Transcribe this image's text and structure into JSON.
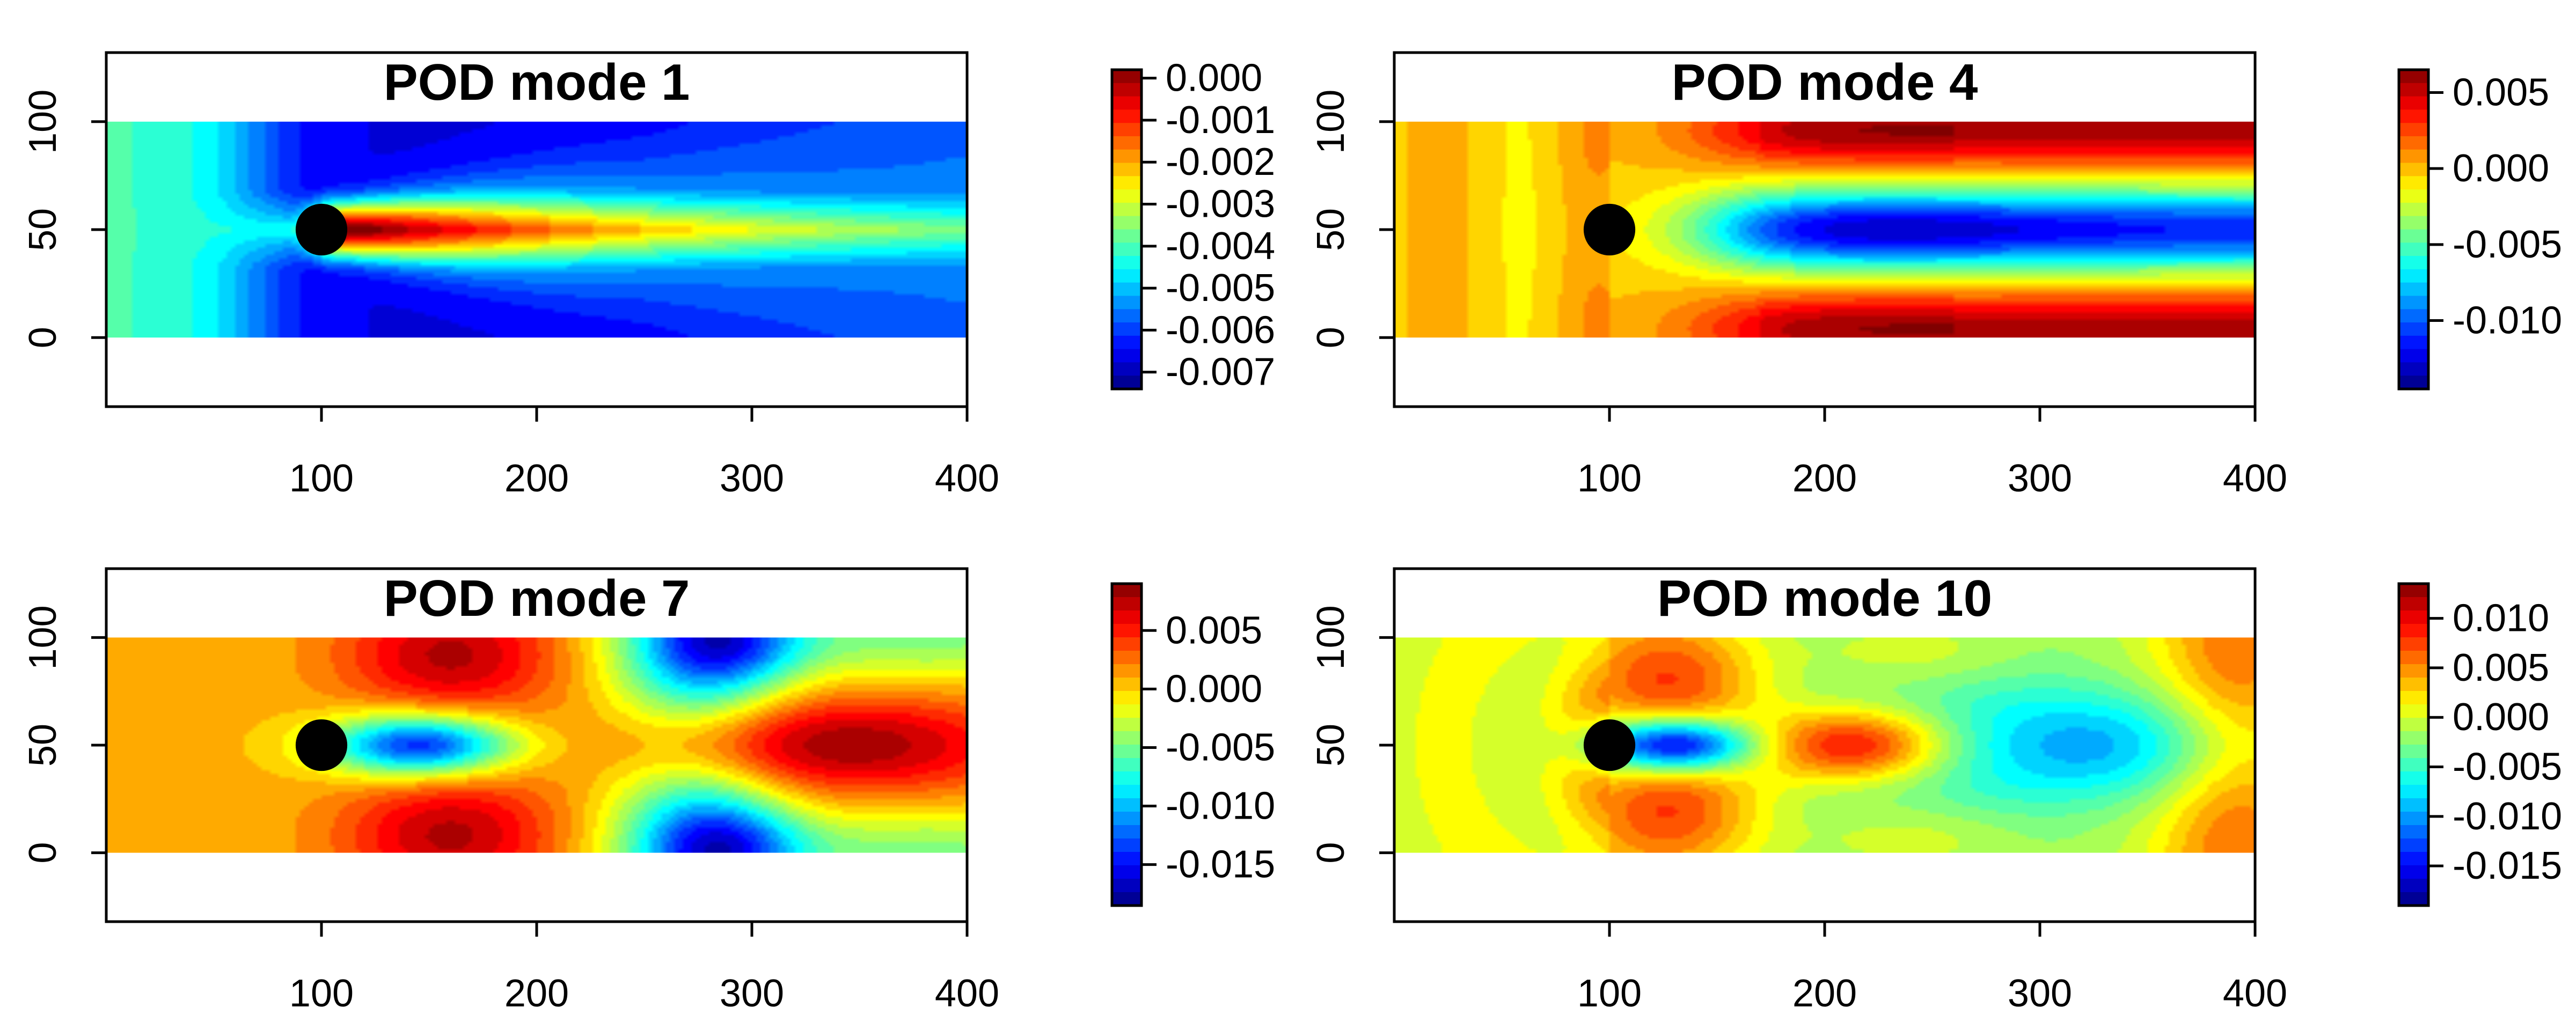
{
  "figure": {
    "panels": 4
  },
  "chart_data": [
    {
      "type": "heatmap",
      "title": "POD mode 1",
      "xlabel": "",
      "ylabel": "",
      "xlim": [
        0,
        400
      ],
      "ylim": [
        -32,
        132
      ],
      "field_extent": {
        "x": [
          0,
          400
        ],
        "y": [
          0,
          100
        ]
      },
      "x_ticks": [
        "100",
        "200",
        "300",
        "400"
      ],
      "x_tick_values": [
        100,
        200,
        300,
        400
      ],
      "y_ticks": [
        "0",
        "50",
        "100"
      ],
      "y_tick_values": [
        0,
        50,
        100
      ],
      "cylinder": {
        "center": [
          100,
          50
        ],
        "radius": 12
      },
      "colormap": "jet",
      "value_range": [
        -0.0074,
        0.0002
      ],
      "colorbar_ticks": [
        "0.000",
        "-0.001",
        "-0.002",
        "-0.003",
        "-0.004",
        "-0.005",
        "-0.006",
        "-0.007"
      ],
      "colorbar_tick_values": [
        0.0,
        -0.001,
        -0.002,
        -0.003,
        -0.004,
        -0.005,
        -0.006,
        -0.007
      ],
      "pattern": "mode1"
    },
    {
      "type": "heatmap",
      "title": "POD mode 4",
      "xlabel": "",
      "ylabel": "",
      "xlim": [
        0,
        400
      ],
      "ylim": [
        -32,
        132
      ],
      "field_extent": {
        "x": [
          0,
          400
        ],
        "y": [
          0,
          100
        ]
      },
      "x_ticks": [
        "100",
        "200",
        "300",
        "400"
      ],
      "x_tick_values": [
        100,
        200,
        300,
        400
      ],
      "y_ticks": [
        "0",
        "50",
        "100"
      ],
      "y_tick_values": [
        0,
        50,
        100
      ],
      "cylinder": {
        "center": [
          100,
          50
        ],
        "radius": 12
      },
      "colormap": "jet",
      "value_range": [
        -0.0145,
        0.0065
      ],
      "colorbar_ticks": [
        "0.005",
        "0.000",
        "-0.005",
        "-0.010"
      ],
      "colorbar_tick_values": [
        0.005,
        0.0,
        -0.005,
        -0.01
      ],
      "pattern": "mode4"
    },
    {
      "type": "heatmap",
      "title": "POD mode 7",
      "xlabel": "",
      "ylabel": "",
      "xlim": [
        0,
        400
      ],
      "ylim": [
        -32,
        132
      ],
      "field_extent": {
        "x": [
          0,
          400
        ],
        "y": [
          0,
          100
        ]
      },
      "x_ticks": [
        "100",
        "200",
        "300",
        "400"
      ],
      "x_tick_values": [
        100,
        200,
        300,
        400
      ],
      "y_ticks": [
        "0",
        "50",
        "100"
      ],
      "y_tick_values": [
        0,
        50,
        100
      ],
      "cylinder": {
        "center": [
          100,
          50
        ],
        "radius": 12
      },
      "colormap": "jet",
      "value_range": [
        -0.0185,
        0.009
      ],
      "colorbar_ticks": [
        "0.005",
        "0.000",
        "-0.005",
        "-0.010",
        "-0.015"
      ],
      "colorbar_tick_values": [
        0.005,
        0.0,
        -0.005,
        -0.01,
        -0.015
      ],
      "pattern": "mode7"
    },
    {
      "type": "heatmap",
      "title": "POD mode 10",
      "xlabel": "",
      "ylabel": "",
      "xlim": [
        0,
        400
      ],
      "ylim": [
        -32,
        132
      ],
      "field_extent": {
        "x": [
          0,
          400
        ],
        "y": [
          0,
          100
        ]
      },
      "x_ticks": [
        "100",
        "200",
        "300",
        "400"
      ],
      "x_tick_values": [
        100,
        200,
        300,
        400
      ],
      "y_ticks": [
        "0",
        "50",
        "100"
      ],
      "y_tick_values": [
        0,
        50,
        100
      ],
      "cylinder": {
        "center": [
          100,
          50
        ],
        "radius": 12
      },
      "colormap": "jet",
      "value_range": [
        -0.019,
        0.0135
      ],
      "colorbar_ticks": [
        "0.010",
        "0.005",
        "0.000",
        "-0.005",
        "-0.010",
        "-0.015"
      ],
      "colorbar_tick_values": [
        0.01,
        0.005,
        0.0,
        -0.005,
        -0.01,
        -0.015
      ],
      "pattern": "mode10"
    }
  ]
}
